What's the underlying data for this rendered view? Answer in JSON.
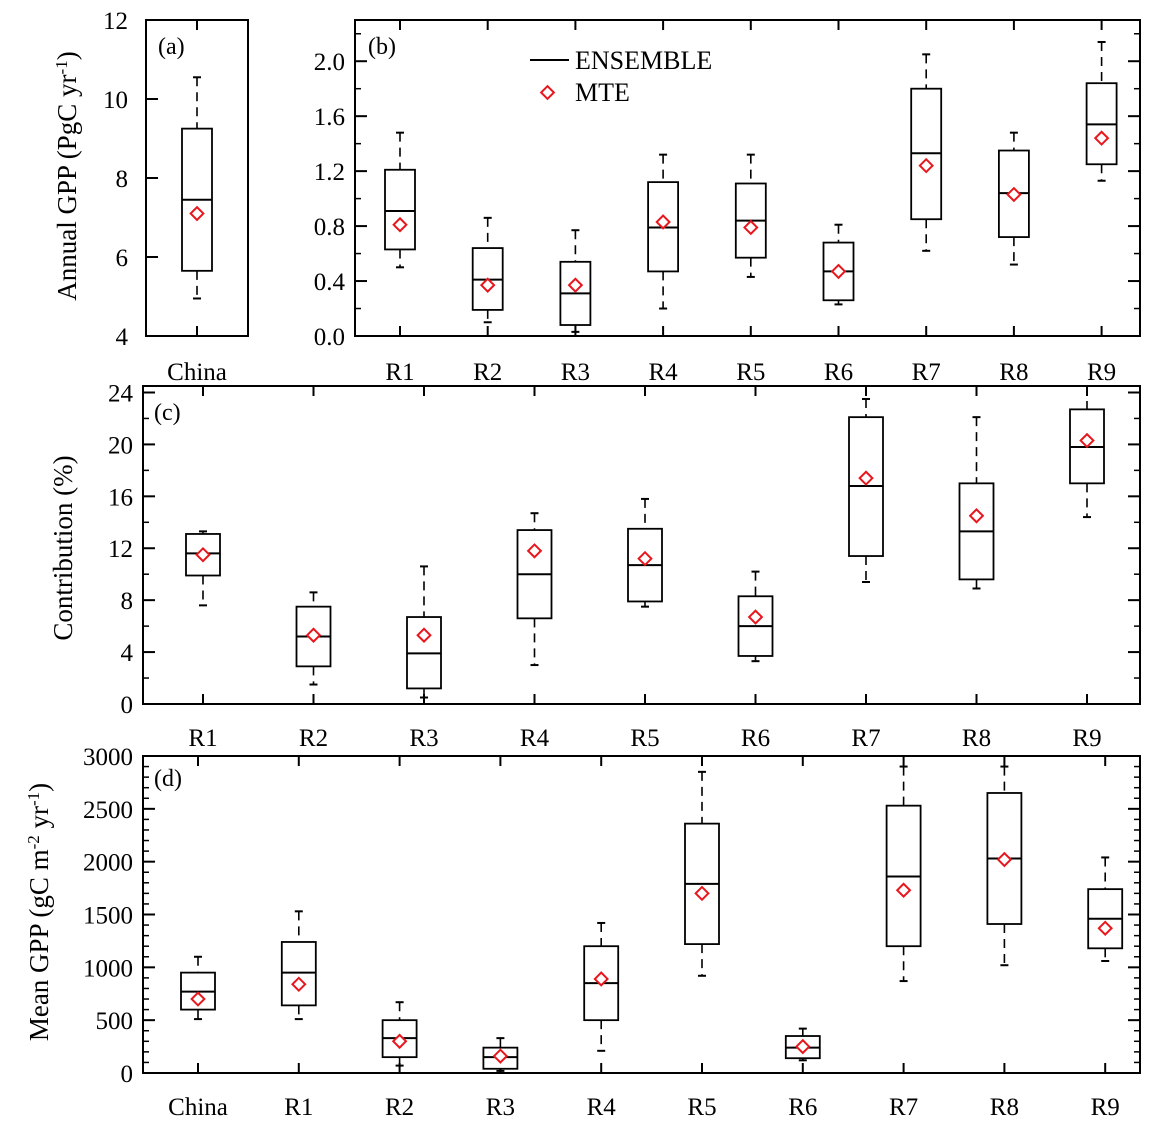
{
  "colors": {
    "mte_marker": "#e8161d",
    "box_stroke": "#000000"
  },
  "legend": {
    "ensemble_label": "ENSEMBLE",
    "mte_label": "MTE",
    "placement": "top-center of panel (b)"
  },
  "chart_data": [
    {
      "type": "box",
      "panel": "(a)",
      "title": "",
      "xlabel": "",
      "ylabel": "Annual GPP (PgC yr",
      "ylabel_sup": "-1",
      "ylabel_tail": ")",
      "categories": [
        "China"
      ],
      "ylim": [
        4,
        12
      ],
      "yticks": [
        4,
        6,
        8,
        10,
        12
      ],
      "ytick_labels": [
        "4",
        "6",
        "8",
        "10",
        "12"
      ],
      "series": [
        {
          "name": "ENSEMBLE",
          "boxes": [
            {
              "whisker_low": 4.95,
              "q1": 5.65,
              "median": 7.45,
              "q3": 9.25,
              "whisker_high": 10.55
            }
          ]
        },
        {
          "name": "MTE",
          "values": [
            7.1
          ]
        }
      ]
    },
    {
      "type": "box",
      "panel": "(b)",
      "title": "",
      "xlabel": "",
      "ylabel": "",
      "categories": [
        "R1",
        "R2",
        "R3",
        "R4",
        "R5",
        "R6",
        "R7",
        "R8",
        "R9"
      ],
      "ylim": [
        0,
        2.3
      ],
      "yticks": [
        0.0,
        0.4,
        0.8,
        1.2,
        1.6,
        2.0
      ],
      "ytick_labels": [
        "0.0",
        "0.4",
        "0.8",
        "1.2",
        "1.6",
        "2.0"
      ],
      "series": [
        {
          "name": "ENSEMBLE",
          "boxes": [
            {
              "whisker_low": 0.5,
              "q1": 0.63,
              "median": 0.91,
              "q3": 1.21,
              "whisker_high": 1.48
            },
            {
              "whisker_low": 0.1,
              "q1": 0.19,
              "median": 0.41,
              "q3": 0.64,
              "whisker_high": 0.86
            },
            {
              "whisker_low": 0.03,
              "q1": 0.08,
              "median": 0.31,
              "q3": 0.54,
              "whisker_high": 0.77
            },
            {
              "whisker_low": 0.2,
              "q1": 0.47,
              "median": 0.79,
              "q3": 1.12,
              "whisker_high": 1.32
            },
            {
              "whisker_low": 0.43,
              "q1": 0.57,
              "median": 0.84,
              "q3": 1.11,
              "whisker_high": 1.32
            },
            {
              "whisker_low": 0.23,
              "q1": 0.26,
              "median": 0.47,
              "q3": 0.68,
              "whisker_high": 0.81
            },
            {
              "whisker_low": 0.62,
              "q1": 0.85,
              "median": 1.33,
              "q3": 1.8,
              "whisker_high": 2.05
            },
            {
              "whisker_low": 0.52,
              "q1": 0.72,
              "median": 1.04,
              "q3": 1.35,
              "whisker_high": 1.48
            },
            {
              "whisker_low": 1.13,
              "q1": 1.25,
              "median": 1.54,
              "q3": 1.84,
              "whisker_high": 2.14
            }
          ]
        },
        {
          "name": "MTE",
          "values": [
            0.81,
            0.37,
            0.37,
            0.83,
            0.79,
            0.47,
            1.24,
            1.03,
            1.44
          ]
        }
      ]
    },
    {
      "type": "box",
      "panel": "(c)",
      "title": "",
      "xlabel": "",
      "ylabel": "Contribution (%)",
      "categories": [
        "R1",
        "R2",
        "R3",
        "R4",
        "R5",
        "R6",
        "R7",
        "R8",
        "R9"
      ],
      "ylim": [
        0,
        24.5
      ],
      "yticks": [
        0,
        4,
        8,
        12,
        16,
        20,
        24
      ],
      "ytick_labels": [
        "0",
        "4",
        "8",
        "12",
        "16",
        "20",
        "24"
      ],
      "series": [
        {
          "name": "ENSEMBLE",
          "boxes": [
            {
              "whisker_low": 7.6,
              "q1": 9.9,
              "median": 11.6,
              "q3": 13.1,
              "whisker_high": 13.3
            },
            {
              "whisker_low": 1.5,
              "q1": 2.9,
              "median": 5.2,
              "q3": 7.5,
              "whisker_high": 8.6
            },
            {
              "whisker_low": 0.5,
              "q1": 1.2,
              "median": 3.9,
              "q3": 6.7,
              "whisker_high": 10.6
            },
            {
              "whisker_low": 3.0,
              "q1": 6.6,
              "median": 10.0,
              "q3": 13.4,
              "whisker_high": 14.7
            },
            {
              "whisker_low": 7.5,
              "q1": 7.9,
              "median": 10.7,
              "q3": 13.5,
              "whisker_high": 15.8
            },
            {
              "whisker_low": 3.3,
              "q1": 3.7,
              "median": 6.0,
              "q3": 8.3,
              "whisker_high": 10.2
            },
            {
              "whisker_low": 9.4,
              "q1": 11.4,
              "median": 16.8,
              "q3": 22.1,
              "whisker_high": 23.5
            },
            {
              "whisker_low": 8.9,
              "q1": 9.6,
              "median": 13.3,
              "q3": 17.0,
              "whisker_high": 22.1
            },
            {
              "whisker_low": 14.4,
              "q1": 17.0,
              "median": 19.8,
              "q3": 22.7,
              "whisker_high": 24.5
            }
          ]
        },
        {
          "name": "MTE",
          "values": [
            11.5,
            5.3,
            5.3,
            11.8,
            11.2,
            6.7,
            17.4,
            14.5,
            20.3
          ]
        }
      ]
    },
    {
      "type": "box",
      "panel": "(d)",
      "title": "",
      "xlabel": "",
      "ylabel": "Mean GPP (gC m",
      "ylabel_sup": "-2",
      "ylabel_mid": " yr",
      "ylabel_sup2": "-1",
      "ylabel_tail": ")",
      "categories": [
        "China",
        "R1",
        "R2",
        "R3",
        "R4",
        "R5",
        "R6",
        "R7",
        "R8",
        "R9"
      ],
      "ylim": [
        0,
        3000
      ],
      "yticks": [
        0,
        500,
        1000,
        1500,
        2000,
        2500,
        3000
      ],
      "ytick_labels": [
        "0",
        "500",
        "1000",
        "1500",
        "2000",
        "2500",
        "3000"
      ],
      "series": [
        {
          "name": "ENSEMBLE",
          "boxes": [
            {
              "whisker_low": 510,
              "q1": 600,
              "median": 770,
              "q3": 950,
              "whisker_high": 1100
            },
            {
              "whisker_low": 510,
              "q1": 640,
              "median": 950,
              "q3": 1240,
              "whisker_high": 1530
            },
            {
              "whisker_low": 70,
              "q1": 150,
              "median": 330,
              "q3": 500,
              "whisker_high": 670
            },
            {
              "whisker_low": 20,
              "q1": 40,
              "median": 150,
              "q3": 240,
              "whisker_high": 330
            },
            {
              "whisker_low": 210,
              "q1": 500,
              "median": 850,
              "q3": 1200,
              "whisker_high": 1420
            },
            {
              "whisker_low": 920,
              "q1": 1220,
              "median": 1790,
              "q3": 2360,
              "whisker_high": 2850
            },
            {
              "whisker_low": 120,
              "q1": 140,
              "median": 240,
              "q3": 350,
              "whisker_high": 420
            },
            {
              "whisker_low": 870,
              "q1": 1200,
              "median": 1860,
              "q3": 2530,
              "whisker_high": 2900
            },
            {
              "whisker_low": 1020,
              "q1": 1410,
              "median": 2030,
              "q3": 2650,
              "whisker_high": 2900
            },
            {
              "whisker_low": 1060,
              "q1": 1180,
              "median": 1460,
              "q3": 1740,
              "whisker_high": 2040
            }
          ]
        },
        {
          "name": "MTE",
          "values": [
            700,
            840,
            300,
            160,
            890,
            1700,
            250,
            1730,
            2020,
            1370
          ]
        }
      ]
    }
  ]
}
